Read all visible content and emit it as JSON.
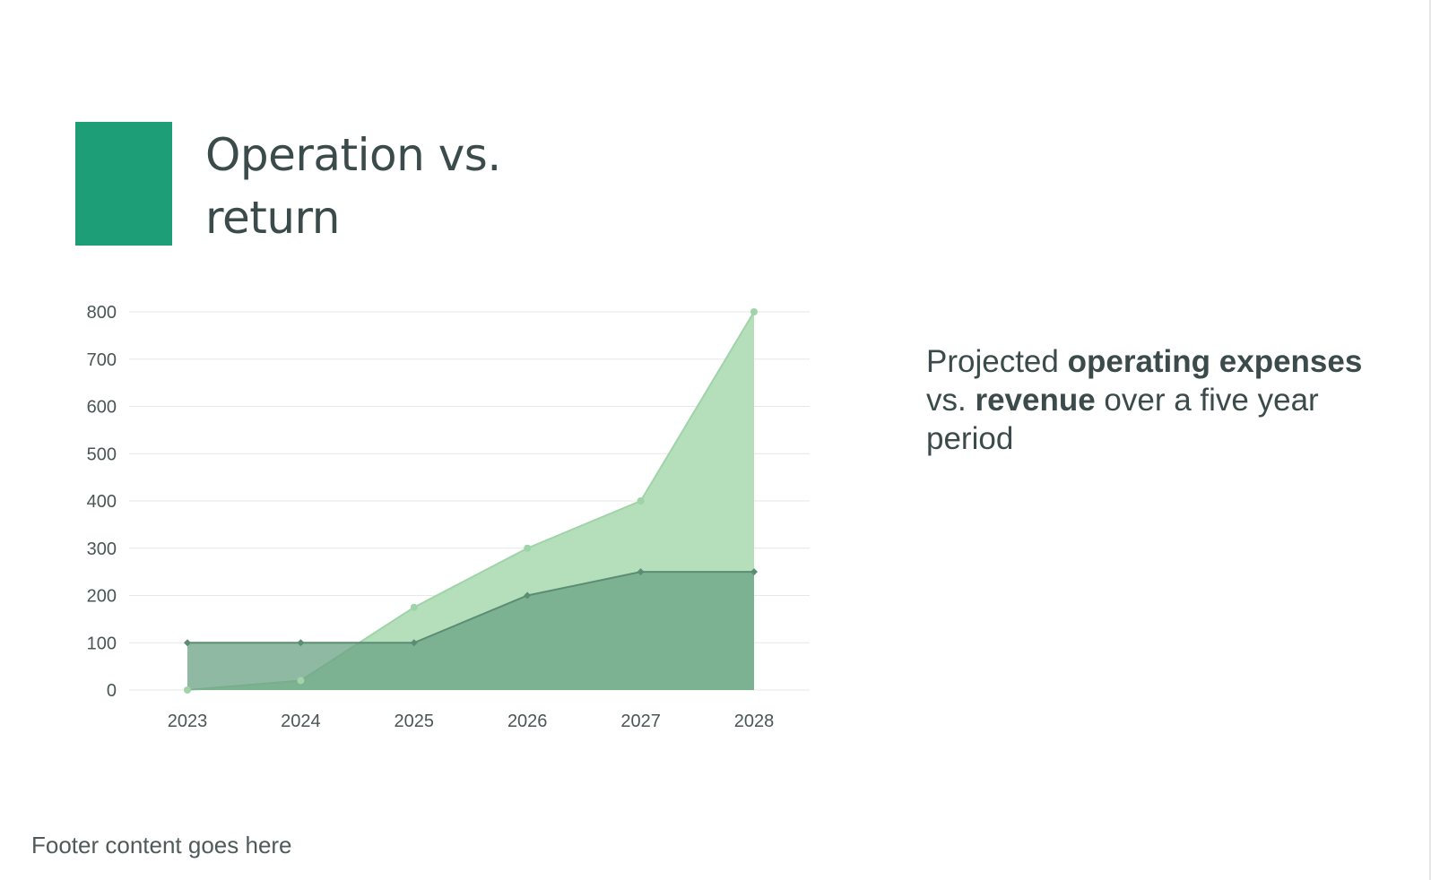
{
  "title": {
    "line1": "Operation vs.",
    "line2": "return"
  },
  "caption": {
    "part1": "Projected ",
    "bold1": "operating expenses",
    "part2": " vs. ",
    "bold2": "revenue",
    "part3": " over a five year period"
  },
  "footer": "Footer content goes here",
  "colors": {
    "accent": "#1d9e76",
    "revenue_fill": "#b5dfba",
    "revenue_line": "#9fd3a8",
    "expenses_fill": "#6aa283",
    "expenses_line": "#5a8d74",
    "grid": "#e4e8e6",
    "text": "#3b4a4a"
  },
  "chart_data": {
    "type": "area",
    "x": [
      "2023",
      "2024",
      "2025",
      "2026",
      "2027",
      "2028"
    ],
    "series": [
      {
        "values": [
          0,
          20,
          175,
          300,
          400,
          800
        ]
      },
      {
        "values": [
          100,
          100,
          100,
          200,
          250,
          250
        ]
      }
    ],
    "ylim": [
      0,
      800
    ],
    "yticks": [
      "0",
      "100",
      "200",
      "300",
      "400",
      "500",
      "600",
      "700",
      "800"
    ],
    "grid": true,
    "legend": "none"
  }
}
